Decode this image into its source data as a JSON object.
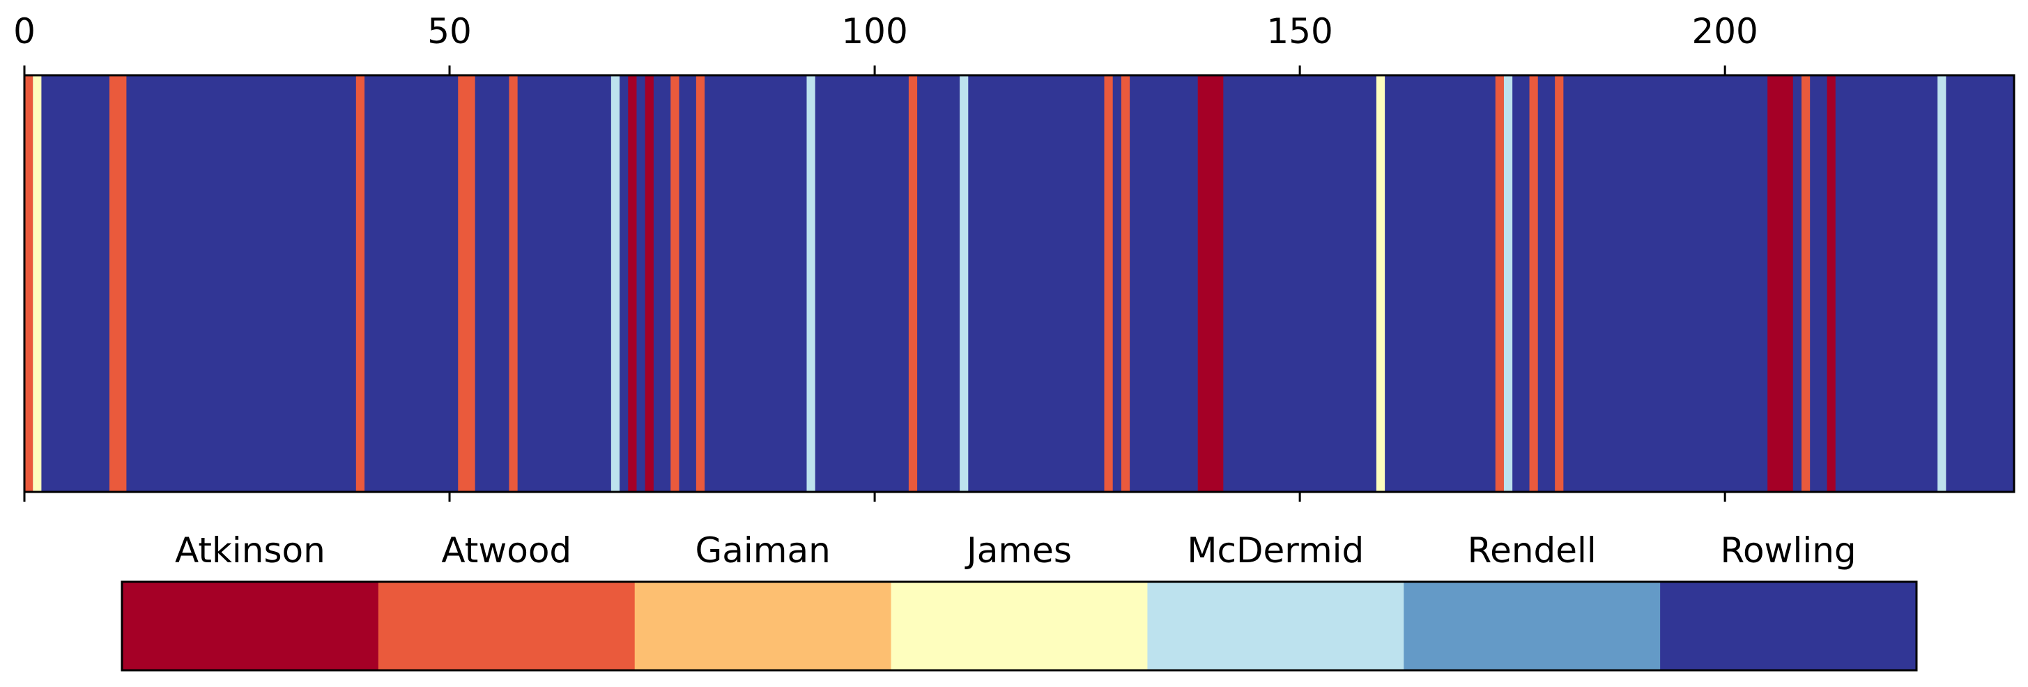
{
  "chart_data": {
    "type": "heatmap",
    "title": "",
    "xlabel": "",
    "ylabel": "",
    "xlim": [
      0,
      234
    ],
    "x_ticks": [
      0,
      50,
      100,
      150,
      200
    ],
    "x_tick_labels": [
      "0",
      "50",
      "100",
      "150",
      "200"
    ],
    "x_axis_position": "top",
    "grid": false,
    "legend_position": "bottom",
    "default_category": "Rowling",
    "categories": [
      "Atkinson",
      "Atwood",
      "Gaiman",
      "James",
      "McDermid",
      "Rendell",
      "Rowling"
    ],
    "colors": {
      "Atkinson": "#a50026",
      "Atwood": "#ea5a3c",
      "Gaiman": "#fdbf71",
      "James": "#fefebe",
      "McDermid": "#bde2ee",
      "Rendell": "#649ac7",
      "Rowling": "#313695"
    },
    "segments": [
      {
        "start": 0,
        "end": 1,
        "author": "Atwood"
      },
      {
        "start": 1,
        "end": 2,
        "author": "James"
      },
      {
        "start": 10,
        "end": 12,
        "author": "Atwood"
      },
      {
        "start": 39,
        "end": 40,
        "author": "Atwood"
      },
      {
        "start": 51,
        "end": 53,
        "author": "Atwood"
      },
      {
        "start": 57,
        "end": 58,
        "author": "Atwood"
      },
      {
        "start": 69,
        "end": 70,
        "author": "McDermid"
      },
      {
        "start": 71,
        "end": 72,
        "author": "Atkinson"
      },
      {
        "start": 73,
        "end": 74,
        "author": "Atkinson"
      },
      {
        "start": 76,
        "end": 77,
        "author": "Atwood"
      },
      {
        "start": 79,
        "end": 80,
        "author": "Atwood"
      },
      {
        "start": 92,
        "end": 93,
        "author": "McDermid"
      },
      {
        "start": 104,
        "end": 105,
        "author": "Atwood"
      },
      {
        "start": 110,
        "end": 111,
        "author": "McDermid"
      },
      {
        "start": 127,
        "end": 128,
        "author": "Atwood"
      },
      {
        "start": 129,
        "end": 130,
        "author": "Atwood"
      },
      {
        "start": 138,
        "end": 141,
        "author": "Atkinson"
      },
      {
        "start": 159,
        "end": 160,
        "author": "James"
      },
      {
        "start": 173,
        "end": 174,
        "author": "Atwood"
      },
      {
        "start": 174,
        "end": 175,
        "author": "McDermid"
      },
      {
        "start": 177,
        "end": 178,
        "author": "Atwood"
      },
      {
        "start": 180,
        "end": 181,
        "author": "Atwood"
      },
      {
        "start": 205,
        "end": 208,
        "author": "Atkinson"
      },
      {
        "start": 209,
        "end": 210,
        "author": "Atwood"
      },
      {
        "start": 212,
        "end": 213,
        "author": "Atkinson"
      },
      {
        "start": 225,
        "end": 226,
        "author": "McDermid"
      }
    ]
  }
}
